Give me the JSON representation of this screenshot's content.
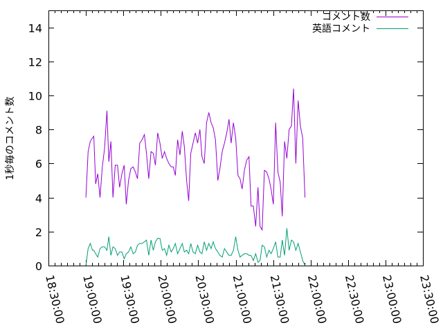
{
  "chart_data": {
    "type": "line",
    "title": "",
    "xlabel": "",
    "ylabel": "1秒毎のコメント数",
    "xlim": [
      "18:30:00",
      "23:30:00"
    ],
    "ylim": [
      0,
      15
    ],
    "grid": false,
    "legend_position": "top-right",
    "x_ticks": [
      "18:30:00",
      "19:00:00",
      "19:30:00",
      "20:00:00",
      "20:30:00",
      "21:00:00",
      "21:30:00",
      "22:00:00",
      "22:30:00",
      "23:00:00",
      "23:30:00"
    ],
    "y_ticks": [
      0,
      2,
      4,
      6,
      8,
      10,
      12,
      14
    ],
    "series": [
      {
        "name": "コメント数",
        "color": "#9400d3",
        "points": [
          [
            "19:00:00",
            4.0
          ],
          [
            "19:01:45",
            6.7
          ],
          [
            "19:03:30",
            7.3
          ],
          [
            "19:05:15",
            7.5
          ],
          [
            "19:06:20",
            7.6
          ],
          [
            "19:07:50",
            4.8
          ],
          [
            "19:09:30",
            5.4
          ],
          [
            "19:11:20",
            4.0
          ],
          [
            "19:13:10",
            5.8
          ],
          [
            "19:15:00",
            6.9
          ],
          [
            "19:16:50",
            9.1
          ],
          [
            "19:18:20",
            6.1
          ],
          [
            "19:20:00",
            7.3
          ],
          [
            "19:21:40",
            4.0
          ],
          [
            "19:23:30",
            5.9
          ],
          [
            "19:25:20",
            5.9
          ],
          [
            "19:27:00",
            4.6
          ],
          [
            "19:28:50",
            5.4
          ],
          [
            "19:30:40",
            5.9
          ],
          [
            "19:32:20",
            3.6
          ],
          [
            "19:34:10",
            5.0
          ],
          [
            "19:36:00",
            5.7
          ],
          [
            "19:37:50",
            5.8
          ],
          [
            "19:39:40",
            5.5
          ],
          [
            "19:41:20",
            5.1
          ],
          [
            "19:43:10",
            7.2
          ],
          [
            "19:45:00",
            7.4
          ],
          [
            "19:46:50",
            7.7
          ],
          [
            "19:48:30",
            6.6
          ],
          [
            "19:50:20",
            5.1
          ],
          [
            "19:52:10",
            6.7
          ],
          [
            "19:54:00",
            6.6
          ],
          [
            "19:55:40",
            5.9
          ],
          [
            "19:57:30",
            7.8
          ],
          [
            "19:59:20",
            7.2
          ],
          [
            "20:01:10",
            6.3
          ],
          [
            "20:03:00",
            6.7
          ],
          [
            "20:04:40",
            6.3
          ],
          [
            "20:06:30",
            6.0
          ],
          [
            "20:08:20",
            5.8
          ],
          [
            "20:10:00",
            5.8
          ],
          [
            "20:11:40",
            5.3
          ],
          [
            "20:13:30",
            7.4
          ],
          [
            "20:15:20",
            6.5
          ],
          [
            "20:17:10",
            7.9
          ],
          [
            "20:18:50",
            7.0
          ],
          [
            "20:20:40",
            5.0
          ],
          [
            "20:22:20",
            3.8
          ],
          [
            "20:24:00",
            6.6
          ],
          [
            "20:25:50",
            7.2
          ],
          [
            "20:27:40",
            7.8
          ],
          [
            "20:29:30",
            7.2
          ],
          [
            "20:31:20",
            8.0
          ],
          [
            "20:33:00",
            6.4
          ],
          [
            "20:34:50",
            6.0
          ],
          [
            "20:36:40",
            8.4
          ],
          [
            "20:38:30",
            9.0
          ],
          [
            "20:40:20",
            8.4
          ],
          [
            "20:42:00",
            8.1
          ],
          [
            "20:43:50",
            7.4
          ],
          [
            "20:45:40",
            5.0
          ],
          [
            "20:47:20",
            5.7
          ],
          [
            "20:49:10",
            6.7
          ],
          [
            "20:51:00",
            7.2
          ],
          [
            "20:52:50",
            7.8
          ],
          [
            "20:54:40",
            8.6
          ],
          [
            "20:56:20",
            7.2
          ],
          [
            "20:58:10",
            8.4
          ],
          [
            "21:00:00",
            7.5
          ],
          [
            "21:01:50",
            5.3
          ],
          [
            "21:03:30",
            5.1
          ],
          [
            "21:05:10",
            4.5
          ],
          [
            "21:07:00",
            5.6
          ],
          [
            "21:08:50",
            6.2
          ],
          [
            "21:10:40",
            6.4
          ],
          [
            "21:12:20",
            3.5
          ],
          [
            "21:14:10",
            3.5
          ],
          [
            "21:16:00",
            2.3
          ],
          [
            "21:17:50",
            4.6
          ],
          [
            "21:19:30",
            2.3
          ],
          [
            "21:21:10",
            2.1
          ],
          [
            "21:23:00",
            5.6
          ],
          [
            "21:24:50",
            5.5
          ],
          [
            "21:26:40",
            5.1
          ],
          [
            "21:28:20",
            4.5
          ],
          [
            "21:30:10",
            3.6
          ],
          [
            "21:32:00",
            8.4
          ],
          [
            "21:33:50",
            5.5
          ],
          [
            "21:35:40",
            4.9
          ],
          [
            "21:37:20",
            2.9
          ],
          [
            "21:39:10",
            7.3
          ],
          [
            "21:41:00",
            6.3
          ],
          [
            "21:42:50",
            8.0
          ],
          [
            "21:44:40",
            8.2
          ],
          [
            "21:46:20",
            10.4
          ],
          [
            "21:48:10",
            6.0
          ],
          [
            "21:50:00",
            9.7
          ],
          [
            "21:51:50",
            8.2
          ],
          [
            "21:53:40",
            7.5
          ],
          [
            "21:55:30",
            4.0
          ]
        ]
      },
      {
        "name": "英語コメント",
        "color": "#009e73",
        "points": [
          [
            "19:00:00",
            0.0
          ],
          [
            "19:01:45",
            1.0
          ],
          [
            "19:03:30",
            1.3
          ],
          [
            "19:05:15",
            0.9
          ],
          [
            "19:06:20",
            0.9
          ],
          [
            "19:07:50",
            0.7
          ],
          [
            "19:09:30",
            0.5
          ],
          [
            "19:11:20",
            1.0
          ],
          [
            "19:13:10",
            1.1
          ],
          [
            "19:15:00",
            1.1
          ],
          [
            "19:16:50",
            0.9
          ],
          [
            "19:18:20",
            1.7
          ],
          [
            "19:20:00",
            0.6
          ],
          [
            "19:21:40",
            1.1
          ],
          [
            "19:23:30",
            1.0
          ],
          [
            "19:25:20",
            0.6
          ],
          [
            "19:27:00",
            0.8
          ],
          [
            "19:28:50",
            0.8
          ],
          [
            "19:30:40",
            0.4
          ],
          [
            "19:32:20",
            0.7
          ],
          [
            "19:34:10",
            0.8
          ],
          [
            "19:36:00",
            1.1
          ],
          [
            "19:37:50",
            0.7
          ],
          [
            "19:39:40",
            0.8
          ],
          [
            "19:41:20",
            1.2
          ],
          [
            "19:43:10",
            1.3
          ],
          [
            "19:45:00",
            1.3
          ],
          [
            "19:46:50",
            1.4
          ],
          [
            "19:48:30",
            1.5
          ],
          [
            "19:50:20",
            0.6
          ],
          [
            "19:52:10",
            1.5
          ],
          [
            "19:54:00",
            0.9
          ],
          [
            "19:55:40",
            1.4
          ],
          [
            "19:57:30",
            1.6
          ],
          [
            "19:59:20",
            1.6
          ],
          [
            "20:01:10",
            0.9
          ],
          [
            "20:03:00",
            1.0
          ],
          [
            "20:04:40",
            0.6
          ],
          [
            "20:06:30",
            1.2
          ],
          [
            "20:08:20",
            0.8
          ],
          [
            "20:10:00",
            1.0
          ],
          [
            "20:11:40",
            1.3
          ],
          [
            "20:13:30",
            0.7
          ],
          [
            "20:15:20",
            1.0
          ],
          [
            "20:17:10",
            1.3
          ],
          [
            "20:18:50",
            0.8
          ],
          [
            "20:20:40",
            0.9
          ],
          [
            "20:22:20",
            0.7
          ],
          [
            "20:24:00",
            1.3
          ],
          [
            "20:25:50",
            0.8
          ],
          [
            "20:27:40",
            0.7
          ],
          [
            "20:29:30",
            1.2
          ],
          [
            "20:31:20",
            0.8
          ],
          [
            "20:33:00",
            0.7
          ],
          [
            "20:34:50",
            1.4
          ],
          [
            "20:36:40",
            0.9
          ],
          [
            "20:38:30",
            1.3
          ],
          [
            "20:40:20",
            1.0
          ],
          [
            "20:42:00",
            1.4
          ],
          [
            "20:43:50",
            1.0
          ],
          [
            "20:45:40",
            0.8
          ],
          [
            "20:47:20",
            0.6
          ],
          [
            "20:49:10",
            0.5
          ],
          [
            "20:51:00",
            1.0
          ],
          [
            "20:52:50",
            0.8
          ],
          [
            "20:54:40",
            0.6
          ],
          [
            "20:56:20",
            0.6
          ],
          [
            "20:58:10",
            0.9
          ],
          [
            "21:00:00",
            1.7
          ],
          [
            "21:01:50",
            0.9
          ],
          [
            "21:03:30",
            0.5
          ],
          [
            "21:05:10",
            0.6
          ],
          [
            "21:07:00",
            0.7
          ],
          [
            "21:08:50",
            0.7
          ],
          [
            "21:10:40",
            0.6
          ],
          [
            "21:12:20",
            0.6
          ],
          [
            "21:14:10",
            0.3
          ],
          [
            "21:16:00",
            0.7
          ],
          [
            "21:17:50",
            0.2
          ],
          [
            "21:19:30",
            0.3
          ],
          [
            "21:21:10",
            1.2
          ],
          [
            "21:23:00",
            1.1
          ],
          [
            "21:24:50",
            0.5
          ],
          [
            "21:26:40",
            0.9
          ],
          [
            "21:28:20",
            0.7
          ],
          [
            "21:30:10",
            1.0
          ],
          [
            "21:32:00",
            1.4
          ],
          [
            "21:33:50",
            0.5
          ],
          [
            "21:35:40",
            0.5
          ],
          [
            "21:37:20",
            1.5
          ],
          [
            "21:39:10",
            0.6
          ],
          [
            "21:41:00",
            2.2
          ],
          [
            "21:42:50",
            0.9
          ],
          [
            "21:44:40",
            1.5
          ],
          [
            "21:46:20",
            1.4
          ],
          [
            "21:48:10",
            0.9
          ],
          [
            "21:50:00",
            1.3
          ],
          [
            "21:51:50",
            0.8
          ],
          [
            "21:53:40",
            0.3
          ],
          [
            "21:55:30",
            0.0
          ]
        ]
      }
    ]
  }
}
